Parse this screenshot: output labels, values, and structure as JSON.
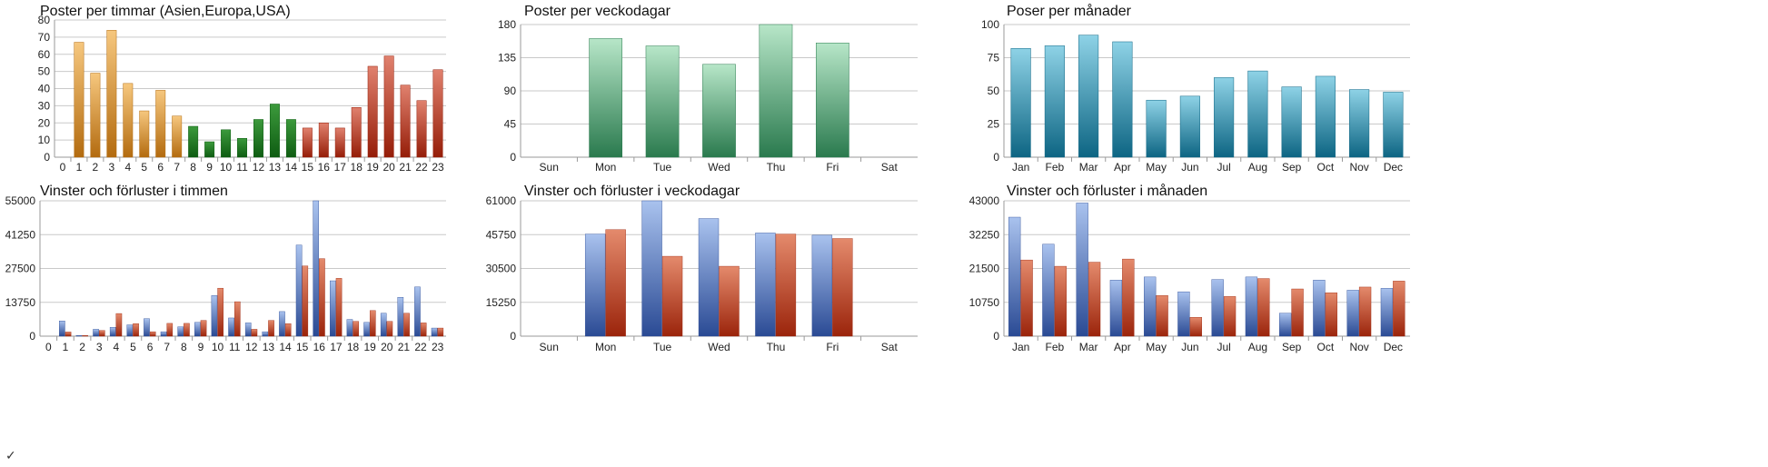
{
  "footer": {
    "check_mark": "✓"
  },
  "colors": {
    "orange_top": "#f6c77e",
    "orange_bottom": "#b36b0f",
    "green_top": "#3c9a3c",
    "green_bottom": "#0e5c12",
    "red_top": "#e0816e",
    "red_bottom": "#951d08",
    "mint_top": "#b7e6c8",
    "mint_bottom": "#2a7a4e",
    "teal_top": "#8ed2e6",
    "teal_bottom": "#0d6583",
    "blue_top": "#a9c2ee",
    "blue_bottom": "#2a4a94",
    "rust_top": "#e48a6c",
    "rust_bottom": "#9b240b"
  },
  "chart_data": [
    {
      "id": "hours-posts",
      "type": "bar",
      "title": "Poster per timmar (Asien,Europa,USA)",
      "categories": [
        "0",
        "1",
        "2",
        "3",
        "4",
        "5",
        "6",
        "7",
        "8",
        "9",
        "10",
        "11",
        "12",
        "13",
        "14",
        "15",
        "16",
        "17",
        "18",
        "19",
        "20",
        "21",
        "22",
        "23"
      ],
      "values": [
        0,
        67,
        49,
        74,
        43,
        27,
        39,
        24,
        18,
        9,
        16,
        11,
        22,
        31,
        22,
        17,
        20,
        17,
        29,
        53,
        59,
        42,
        33,
        51
      ],
      "bar_groups": [
        "orange",
        "orange",
        "orange",
        "orange",
        "orange",
        "orange",
        "orange",
        "orange",
        "green",
        "green",
        "green",
        "green",
        "green",
        "green",
        "green",
        "red",
        "red",
        "red",
        "red",
        "red",
        "red",
        "red",
        "red",
        "red"
      ],
      "ylim": [
        0,
        80
      ],
      "yticks": [
        "0",
        "10",
        "20",
        "30",
        "40",
        "50",
        "60",
        "70",
        "80"
      ],
      "grid": true
    },
    {
      "id": "weekday-posts",
      "type": "bar",
      "title": "Poster per veckodagar",
      "categories": [
        "Sun",
        "Mon",
        "Tue",
        "Wed",
        "Thu",
        "Fri",
        "Sat"
      ],
      "values": [
        0,
        161,
        151,
        126,
        180,
        155,
        0
      ],
      "bar_groups": [
        "mint",
        "mint",
        "mint",
        "mint",
        "mint",
        "mint",
        "mint"
      ],
      "ylim": [
        0,
        180
      ],
      "yticks": [
        "0",
        "45",
        "90",
        "135",
        "180"
      ],
      "grid": true
    },
    {
      "id": "month-posts",
      "type": "bar",
      "title": "Poser per månader",
      "categories": [
        "Jan",
        "Feb",
        "Mar",
        "Apr",
        "May",
        "Jun",
        "Jul",
        "Aug",
        "Sep",
        "Oct",
        "Nov",
        "Dec"
      ],
      "values": [
        82,
        84,
        92,
        87,
        43,
        46,
        60,
        65,
        53,
        61,
        51,
        49
      ],
      "bar_groups": [
        "teal",
        "teal",
        "teal",
        "teal",
        "teal",
        "teal",
        "teal",
        "teal",
        "teal",
        "teal",
        "teal",
        "teal"
      ],
      "ylim": [
        0,
        100
      ],
      "yticks": [
        "0",
        "25",
        "50",
        "75",
        "100"
      ],
      "grid": true
    },
    {
      "id": "hours-winloss",
      "type": "bar",
      "title": "Vinster och förluster i timmen",
      "categories": [
        "0",
        "1",
        "2",
        "3",
        "4",
        "5",
        "6",
        "7",
        "8",
        "9",
        "10",
        "11",
        "12",
        "13",
        "14",
        "15",
        "16",
        "17",
        "18",
        "19",
        "20",
        "21",
        "22",
        "23"
      ],
      "series": [
        {
          "values": [
            0,
            6200,
            300,
            2800,
            3600,
            4600,
            7100,
            1800,
            3800,
            5600,
            16500,
            7400,
            5400,
            1800,
            10000,
            37000,
            55000,
            22500,
            6800,
            5600,
            9300,
            15800,
            20000,
            3300
          ],
          "group": "blue"
        },
        {
          "values": [
            0,
            1700,
            300,
            2300,
            9200,
            5100,
            1800,
            5200,
            5200,
            6400,
            19500,
            14000,
            2800,
            6400,
            5100,
            28500,
            31500,
            23500,
            6000,
            10400,
            6000,
            9300,
            5400,
            3300
          ],
          "group": "rust"
        }
      ],
      "ylim": [
        0,
        55000
      ],
      "yticks": [
        "0",
        "13750",
        "27500",
        "41250",
        "55000"
      ],
      "grid": true
    },
    {
      "id": "weekday-winloss",
      "type": "bar",
      "title": "Vinster och förluster i veckodagar",
      "categories": [
        "Sun",
        "Mon",
        "Tue",
        "Wed",
        "Thu",
        "Fri",
        "Sat"
      ],
      "series": [
        {
          "values": [
            0,
            46000,
            61000,
            53000,
            46500,
            45500,
            0
          ],
          "group": "blue"
        },
        {
          "values": [
            0,
            48000,
            36000,
            31500,
            46000,
            44000,
            0
          ],
          "group": "rust"
        }
      ],
      "ylim": [
        0,
        61000
      ],
      "yticks": [
        "0",
        "15250",
        "30500",
        "45750",
        "61000"
      ],
      "grid": true
    },
    {
      "id": "month-winloss",
      "type": "bar",
      "title": "Vinster och förluster i månaden",
      "categories": [
        "Jan",
        "Feb",
        "Mar",
        "Apr",
        "May",
        "Jun",
        "Jul",
        "Aug",
        "Sep",
        "Oct",
        "Nov",
        "Dec"
      ],
      "series": [
        {
          "values": [
            37800,
            29200,
            42300,
            17800,
            18800,
            14100,
            18000,
            18800,
            7300,
            17800,
            14600,
            15200
          ],
          "group": "blue"
        },
        {
          "values": [
            24200,
            22200,
            23500,
            24500,
            12900,
            6000,
            12600,
            18300,
            15000,
            13800,
            15600,
            17500
          ],
          "group": "rust"
        }
      ],
      "ylim": [
        0,
        43000
      ],
      "yticks": [
        "0",
        "10750",
        "21500",
        "32250",
        "43000"
      ],
      "grid": true
    }
  ]
}
